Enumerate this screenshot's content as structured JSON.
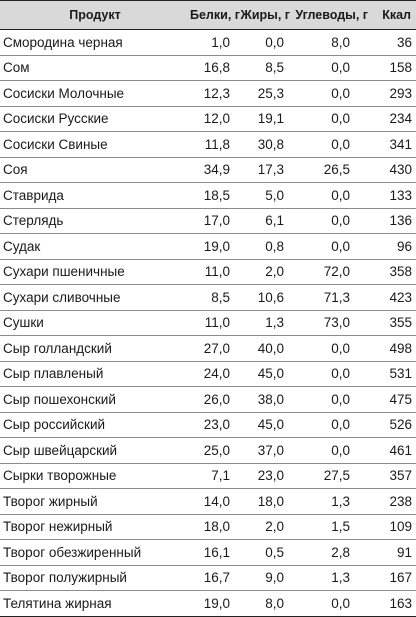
{
  "table": {
    "headers": [
      "Продукт",
      "Белки, г",
      "Жиры, г",
      "Углеводы, г",
      "Ккал"
    ],
    "rows": [
      [
        "Смородина черная",
        "1,0",
        "0,0",
        "8,0",
        "36"
      ],
      [
        "Сом",
        "16,8",
        "8,5",
        "0,0",
        "158"
      ],
      [
        "Сосиски Молочные",
        "12,3",
        "25,3",
        "0,0",
        "293"
      ],
      [
        "Сосиски Русские",
        "12,0",
        "19,1",
        "0,0",
        "234"
      ],
      [
        "Сосиски Свиные",
        "11,8",
        "30,8",
        "0,0",
        "341"
      ],
      [
        "Соя",
        "34,9",
        "17,3",
        "26,5",
        "430"
      ],
      [
        "Ставрида",
        "18,5",
        "5,0",
        "0,0",
        "133"
      ],
      [
        "Стерлядь",
        "17,0",
        "6,1",
        "0,0",
        "136"
      ],
      [
        "Судак",
        "19,0",
        "0,8",
        "0,0",
        "96"
      ],
      [
        "Сухари пшеничные",
        "11,0",
        "2,0",
        "72,0",
        "358"
      ],
      [
        "Сухари сливочные",
        "8,5",
        "10,6",
        "71,3",
        "423"
      ],
      [
        "Сушки",
        "11,0",
        "1,3",
        "73,0",
        "355"
      ],
      [
        "Сыр голландский",
        "27,0",
        "40,0",
        "0,0",
        "498"
      ],
      [
        "Сыр плавленый",
        "24,0",
        "45,0",
        "0,0",
        "531"
      ],
      [
        "Сыр пошехонский",
        "26,0",
        "38,0",
        "0,0",
        "475"
      ],
      [
        "Сыр российский",
        "23,0",
        "45,0",
        "0,0",
        "526"
      ],
      [
        "Сыр швейцарский",
        "25,0",
        "37,0",
        "0,0",
        "461"
      ],
      [
        "Сырки творожные",
        "7,1",
        "23,0",
        "27,5",
        "357"
      ],
      [
        "Творог жирный",
        "14,0",
        "18,0",
        "1,3",
        "238"
      ],
      [
        "Творог нежирный",
        "18,0",
        "2,0",
        "1,5",
        "109"
      ],
      [
        "Творог обезжиренный",
        "16,1",
        "0,5",
        "2,8",
        "91"
      ],
      [
        "Творог полужирный",
        "16,7",
        "9,0",
        "1,3",
        "167"
      ],
      [
        "Телятина жирная",
        "19,0",
        "8,0",
        "0,0",
        "163"
      ]
    ]
  }
}
